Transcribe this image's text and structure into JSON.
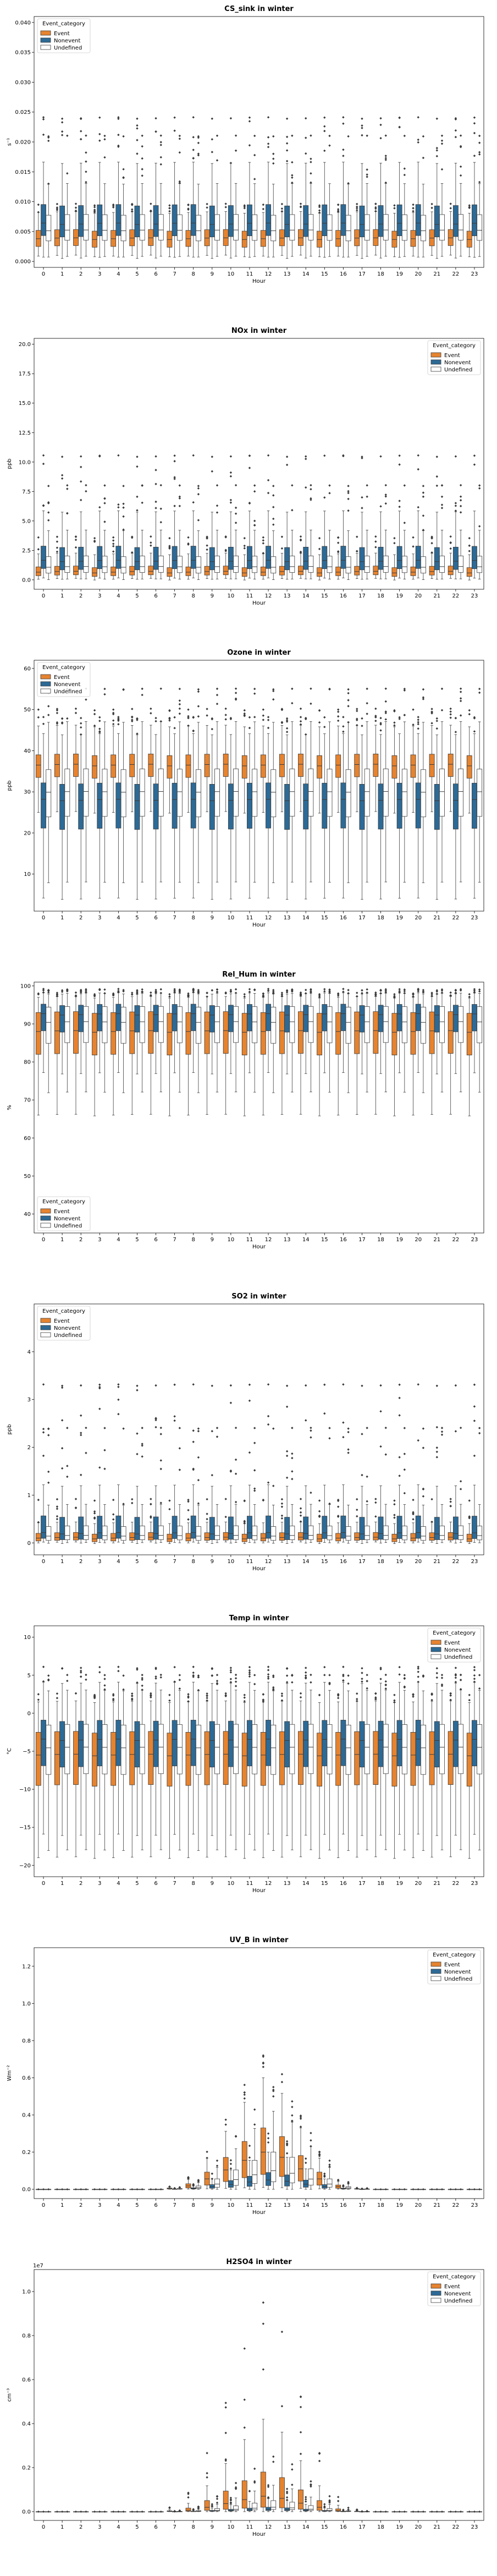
{
  "chart_data": [
    {
      "type": "box",
      "title": "CS_sink in winter",
      "xlabel": "Hour",
      "ylabel": "s⁻¹",
      "ylim": [
        -0.001,
        0.041
      ],
      "yticks": [
        0.0,
        0.005,
        0.01,
        0.015,
        0.02,
        0.025,
        0.03,
        0.035,
        0.04
      ],
      "tick_labels": [
        "0.000",
        "0.005",
        "0.010",
        "0.015",
        "0.020",
        "0.025",
        "0.030",
        "0.035",
        "0.040"
      ],
      "categories": [
        "0",
        "1",
        "2",
        "3",
        "4",
        "5",
        "6",
        "7",
        "8",
        "9",
        "10",
        "11",
        "12",
        "13",
        "14",
        "15",
        "16",
        "17",
        "18",
        "19",
        "20",
        "21",
        "22",
        "23"
      ],
      "legend": {
        "title": "Event_category",
        "position": "upper left",
        "entries": [
          "Event",
          "Nonevent",
          "Undefined"
        ]
      },
      "series": [
        {
          "name": "Event",
          "color": "#e6832f",
          "q1": 0.0025,
          "median": 0.0038,
          "q3": 0.0052,
          "whisker_low": 0.0009,
          "whisker_high": 0.0082,
          "outlier_max": 0.0095
        },
        {
          "name": "Nonevent",
          "color": "#2d6a96",
          "q1": 0.0042,
          "median": 0.0063,
          "q3": 0.0094,
          "whisker_low": 0.0006,
          "whisker_high": 0.0165,
          "outlier_max": 0.024
        },
        {
          "name": "Undefined",
          "color": "#ffffff",
          "q1": 0.0035,
          "median": 0.0052,
          "q3": 0.0078,
          "whisker_low": 0.0008,
          "whisker_high": 0.013,
          "outlier_max": 0.021
        }
      ]
    },
    {
      "type": "box",
      "title": "NOx in winter",
      "xlabel": "Hour",
      "ylabel": "ppb",
      "ylim": [
        -0.8,
        20.5
      ],
      "yticks": [
        0.0,
        2.5,
        5.0,
        7.5,
        10.0,
        12.5,
        15.0,
        17.5,
        20.0
      ],
      "tick_labels": [
        "0.0",
        "2.5",
        "5.0",
        "7.5",
        "10.0",
        "12.5",
        "15.0",
        "17.5",
        "20.0"
      ],
      "categories": [
        "0",
        "1",
        "2",
        "3",
        "4",
        "5",
        "6",
        "7",
        "8",
        "9",
        "10",
        "11",
        "12",
        "13",
        "14",
        "15",
        "16",
        "17",
        "18",
        "19",
        "20",
        "21",
        "22",
        "23"
      ],
      "legend": {
        "title": "Event_category",
        "position": "upper right",
        "entries": [
          "Event",
          "Nonevent",
          "Undefined"
        ]
      },
      "series": [
        {
          "name": "Event",
          "color": "#e6832f",
          "q1": 0.35,
          "median": 0.65,
          "q3": 1.1,
          "whisker_low": 0.05,
          "whisker_high": 2.2,
          "outlier_max": 3.6
        },
        {
          "name": "Nonevent",
          "color": "#2d6a96",
          "q1": 0.9,
          "median": 1.6,
          "q3": 2.8,
          "whisker_low": 0.1,
          "whisker_high": 5.8,
          "outlier_max": 10.5
        },
        {
          "name": "Undefined",
          "color": "#ffffff",
          "q1": 0.6,
          "median": 1.1,
          "q3": 2.0,
          "whisker_low": 0.05,
          "whisker_high": 4.2,
          "outlier_max": 8.0
        }
      ]
    },
    {
      "type": "box",
      "title": "Ozone in winter",
      "xlabel": "Hour",
      "ylabel": "ppb",
      "ylim": [
        1.0,
        62.0
      ],
      "yticks": [
        10,
        20,
        30,
        40,
        50,
        60
      ],
      "tick_labels": [
        "10",
        "20",
        "30",
        "40",
        "50",
        "60"
      ],
      "categories": [
        "0",
        "1",
        "2",
        "3",
        "4",
        "5",
        "6",
        "7",
        "8",
        "9",
        "10",
        "11",
        "12",
        "13",
        "14",
        "15",
        "16",
        "17",
        "18",
        "19",
        "20",
        "21",
        "22",
        "23"
      ],
      "legend": {
        "title": "Event_category",
        "position": "upper left",
        "entries": [
          "Event",
          "Nonevent",
          "Undefined"
        ]
      },
      "series": [
        {
          "name": "Event",
          "color": "#e6832f",
          "q1": 33.5,
          "median": 36.5,
          "q3": 39.0,
          "whisker_low": 25.0,
          "whisker_high": 46.0,
          "outlier_max": 50.0
        },
        {
          "name": "Nonevent",
          "color": "#2d6a96",
          "q1": 21.0,
          "median": 28.0,
          "q3": 32.0,
          "whisker_low": 4.0,
          "whisker_high": 44.0,
          "outlier_max": 48.0
        },
        {
          "name": "Undefined",
          "color": "#ffffff",
          "q1": 24.0,
          "median": 30.0,
          "q3": 35.5,
          "whisker_low": 8.0,
          "whisker_high": 47.0,
          "outlier_max": 55.0
        }
      ]
    },
    {
      "type": "box",
      "title": "Rel_Hum in winter",
      "xlabel": "Hour",
      "ylabel": "%",
      "ylim": [
        35,
        101
      ],
      "yticks": [
        40,
        50,
        60,
        70,
        80,
        90,
        100
      ],
      "tick_labels": [
        "40",
        "50",
        "60",
        "70",
        "80",
        "90",
        "100"
      ],
      "categories": [
        "0",
        "1",
        "2",
        "3",
        "4",
        "5",
        "6",
        "7",
        "8",
        "9",
        "10",
        "11",
        "12",
        "13",
        "14",
        "15",
        "16",
        "17",
        "18",
        "19",
        "20",
        "21",
        "22",
        "23"
      ],
      "legend": {
        "title": "Event_category",
        "position": "lower left",
        "entries": [
          "Event",
          "Nonevent",
          "Undefined"
        ]
      },
      "series": [
        {
          "name": "Event",
          "color": "#e6832f",
          "q1": 82.0,
          "median": 88.0,
          "q3": 93.0,
          "whisker_low": 66.0,
          "whisker_high": 97.0,
          "outlier_max": 98.0
        },
        {
          "name": "Nonevent",
          "color": "#2d6a96",
          "q1": 88.0,
          "median": 92.5,
          "q3": 95.0,
          "whisker_low": 77.0,
          "whisker_high": 98.0,
          "outlier_max": 99.0
        },
        {
          "name": "Undefined",
          "color": "#ffffff",
          "q1": 85.0,
          "median": 90.5,
          "q3": 94.5,
          "whisker_low": 72.0,
          "whisker_high": 98.0,
          "outlier_max": 99.0
        }
      ]
    },
    {
      "type": "box",
      "title": "SO2 in winter",
      "xlabel": "Hour",
      "ylabel": "ppb",
      "ylim": [
        -0.25,
        5.0
      ],
      "yticks": [
        0,
        1,
        2,
        3,
        4
      ],
      "tick_labels": [
        "0",
        "1",
        "2",
        "3",
        "4"
      ],
      "categories": [
        "0",
        "1",
        "2",
        "3",
        "4",
        "5",
        "6",
        "7",
        "8",
        "9",
        "10",
        "11",
        "12",
        "13",
        "14",
        "15",
        "16",
        "17",
        "18",
        "19",
        "20",
        "21",
        "22",
        "23"
      ],
      "legend": {
        "title": "Event_category",
        "position": "upper left",
        "entries": [
          "Event",
          "Nonevent",
          "Undefined"
        ]
      },
      "series": [
        {
          "name": "Event",
          "color": "#e6832f",
          "q1": 0.04,
          "median": 0.1,
          "q3": 0.2,
          "whisker_low": 0.0,
          "whisker_high": 0.42,
          "outlier_max": 0.9
        },
        {
          "name": "Nonevent",
          "color": "#2d6a96",
          "q1": 0.08,
          "median": 0.2,
          "q3": 0.55,
          "whisker_low": 0.0,
          "whisker_high": 1.2,
          "outlier_max": 3.3
        },
        {
          "name": "Undefined",
          "color": "#ffffff",
          "q1": 0.06,
          "median": 0.15,
          "q3": 0.35,
          "whisker_low": 0.0,
          "whisker_high": 0.8,
          "outlier_max": 2.4
        }
      ]
    },
    {
      "type": "box",
      "title": "Temp in winter",
      "xlabel": "Hour",
      "ylabel": "°C",
      "ylim": [
        -21.5,
        11.5
      ],
      "yticks": [
        -20,
        -15,
        -10,
        -5,
        0,
        5,
        10
      ],
      "tick_labels": [
        "−20",
        "−15",
        "−10",
        "−5",
        "0",
        "5",
        "10"
      ],
      "categories": [
        "0",
        "1",
        "2",
        "3",
        "4",
        "5",
        "6",
        "7",
        "8",
        "9",
        "10",
        "11",
        "12",
        "13",
        "14",
        "15",
        "16",
        "17",
        "18",
        "19",
        "20",
        "21",
        "22",
        "23"
      ],
      "legend": {
        "title": "Event_category",
        "position": "upper right",
        "entries": [
          "Event",
          "Nonevent",
          "Undefined"
        ]
      },
      "series": [
        {
          "name": "Event",
          "color": "#e6832f",
          "q1": -9.5,
          "median": -5.5,
          "q3": -2.5,
          "whisker_low": -19.0,
          "whisker_high": 1.5,
          "outlier_max": 2.5
        },
        {
          "name": "Nonevent",
          "color": "#2d6a96",
          "q1": -7.0,
          "median": -3.5,
          "q3": -1.0,
          "whisker_low": -16.0,
          "whisker_high": 4.0,
          "outlier_max": 6.0
        },
        {
          "name": "Undefined",
          "color": "#ffffff",
          "q1": -8.0,
          "median": -4.5,
          "q3": -1.5,
          "whisker_low": -18.0,
          "whisker_high": 3.0,
          "outlier_max": 5.0
        }
      ]
    },
    {
      "type": "box",
      "title": "UV_B in winter",
      "xlabel": "Hour",
      "ylabel": "Wm⁻²",
      "ylim": [
        -0.05,
        1.3
      ],
      "yticks": [
        0.0,
        0.2,
        0.4,
        0.6,
        0.8,
        1.0,
        1.2
      ],
      "tick_labels": [
        "0.0",
        "0.2",
        "0.4",
        "0.6",
        "0.8",
        "1.0",
        "1.2"
      ],
      "categories": [
        "0",
        "1",
        "2",
        "3",
        "4",
        "5",
        "6",
        "7",
        "8",
        "9",
        "10",
        "11",
        "12",
        "13",
        "14",
        "15",
        "16",
        "17",
        "18",
        "19",
        "20",
        "21",
        "22",
        "23"
      ],
      "legend": {
        "title": "Event_category",
        "position": "upper right",
        "entries": [
          "Event",
          "Nonevent",
          "Undefined"
        ]
      },
      "series": [
        {
          "name": "Event",
          "color": "#e6832f",
          "q1": 0.08,
          "median": 0.2,
          "q3": 0.33,
          "whisker_low": 0.01,
          "whisker_high": 0.6,
          "outlier_max": 0.72,
          "profile": [
            0,
            0,
            0,
            0,
            0,
            0,
            0,
            0.02,
            0.09,
            0.28,
            0.52,
            0.78,
            1.0,
            0.86,
            0.55,
            0.28,
            0.07,
            0.01,
            0,
            0,
            0,
            0,
            0,
            0
          ]
        },
        {
          "name": "Nonevent",
          "color": "#2d6a96",
          "q1": 0.02,
          "median": 0.05,
          "q3": 0.09,
          "whisker_low": 0.0,
          "whisker_high": 0.2,
          "outlier_max": 0.3,
          "profile": [
            0,
            0,
            0,
            0,
            0,
            0,
            0,
            0.02,
            0.09,
            0.28,
            0.52,
            0.78,
            1.0,
            0.86,
            0.55,
            0.28,
            0.07,
            0.01,
            0,
            0,
            0,
            0,
            0,
            0
          ]
        },
        {
          "name": "Undefined",
          "color": "#ffffff",
          "q1": 0.04,
          "median": 0.1,
          "q3": 0.2,
          "whisker_low": 0.0,
          "whisker_high": 0.42,
          "outlier_max": 0.55,
          "profile": [
            0,
            0,
            0,
            0,
            0,
            0,
            0,
            0.02,
            0.09,
            0.28,
            0.52,
            0.78,
            1.0,
            0.86,
            0.55,
            0.28,
            0.07,
            0.01,
            0,
            0,
            0,
            0,
            0,
            0
          ]
        }
      ]
    },
    {
      "type": "box",
      "title": "H2SO4 in winter",
      "xlabel": "Hour",
      "ylabel": "cm⁻³",
      "offset_text": "1e7",
      "ylim": [
        -0.04,
        1.1
      ],
      "yticks": [
        0.0,
        0.2,
        0.4,
        0.6,
        0.8,
        1.0
      ],
      "tick_labels": [
        "0.0",
        "0.2",
        "0.4",
        "0.6",
        "0.8",
        "1.0"
      ],
      "categories": [
        "0",
        "1",
        "2",
        "3",
        "4",
        "5",
        "6",
        "7",
        "8",
        "9",
        "10",
        "11",
        "12",
        "13",
        "14",
        "15",
        "16",
        "17",
        "18",
        "19",
        "20",
        "21",
        "22",
        "23"
      ],
      "legend": {
        "title": "Event_category",
        "position": "upper right",
        "entries": [
          "Event",
          "Nonevent",
          "Undefined"
        ]
      },
      "series": [
        {
          "name": "Event",
          "color": "#e6832f",
          "q1": 0.02,
          "median": 0.07,
          "q3": 0.18,
          "whisker_low": 0.0,
          "whisker_high": 0.42,
          "outlier_max": 0.95,
          "profile": [
            0,
            0,
            0,
            0,
            0,
            0,
            0,
            0.02,
            0.09,
            0.28,
            0.52,
            0.78,
            1.0,
            0.86,
            0.55,
            0.28,
            0.07,
            0.01,
            0,
            0,
            0,
            0,
            0,
            0
          ]
        },
        {
          "name": "Nonevent",
          "color": "#2d6a96",
          "q1": 0.005,
          "median": 0.01,
          "q3": 0.02,
          "whisker_low": 0.0,
          "whisker_high": 0.06,
          "outlier_max": 0.12,
          "profile": [
            0,
            0,
            0,
            0,
            0,
            0,
            0,
            0.02,
            0.09,
            0.28,
            0.52,
            0.78,
            1.0,
            0.86,
            0.55,
            0.28,
            0.07,
            0.01,
            0,
            0,
            0,
            0,
            0,
            0
          ]
        },
        {
          "name": "Undefined",
          "color": "#ffffff",
          "q1": 0.01,
          "median": 0.02,
          "q3": 0.05,
          "whisker_low": 0.0,
          "whisker_high": 0.12,
          "outlier_max": 0.25,
          "profile": [
            0,
            0,
            0,
            0,
            0,
            0,
            0,
            0.02,
            0.09,
            0.28,
            0.52,
            0.78,
            1.0,
            0.86,
            0.55,
            0.28,
            0.07,
            0.01,
            0,
            0,
            0,
            0,
            0,
            0
          ]
        }
      ]
    }
  ]
}
